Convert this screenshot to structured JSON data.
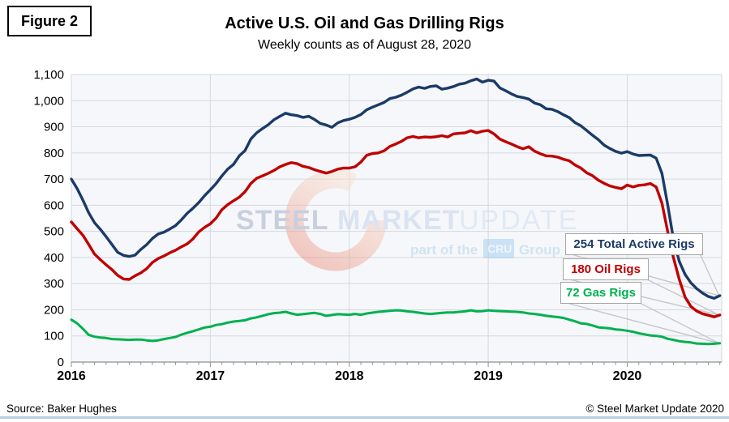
{
  "figure_label": "Figure 2",
  "header": {
    "title": "Active U.S. Oil and Gas Drilling Rigs",
    "subtitle": "Weekly counts as of August 28, 2020"
  },
  "watermark": {
    "word1": "STEEL",
    "word2": "MARKET",
    "word3": "UPDATE",
    "tagline_prefix": "part of the",
    "tagline_badge": "CRU",
    "tagline_suffix": "Group",
    "crescent_color_bottom": "#e8826e",
    "crescent_color_top": "#f8ddc9"
  },
  "footer": {
    "source": "Source: Baker Hughes",
    "copyright": "© Steel Market Update 2020"
  },
  "chart_data": {
    "type": "line",
    "title": "Active U.S. Oil and Gas Drilling Rigs",
    "subtitle": "Weekly counts as of August 28, 2020",
    "xlabel": "",
    "ylabel": "",
    "xlim": [
      2016.0,
      2020.68
    ],
    "ylim": [
      0,
      1100
    ],
    "y_tick_step": 100,
    "y_tick_labels": [
      "0",
      "100",
      "200",
      "300",
      "400",
      "500",
      "600",
      "700",
      "800",
      "900",
      "1,000",
      "1,100"
    ],
    "x_tick_labels": [
      "2016",
      "2017",
      "2018",
      "2019",
      "2020"
    ],
    "grid": true,
    "x_start": 2016.0,
    "x_step": 0.0416667,
    "series": [
      {
        "name": "Total Active Rigs",
        "color": "#1b3a68",
        "end_value": 254,
        "end_label": "254 Total Active Rigs",
        "values": [
          700,
          664,
          619,
          571,
          533,
          508,
          480,
          450,
          420,
          408,
          404,
          409,
          431,
          449,
          473,
          490,
          497,
          509,
          522,
          544,
          569,
          588,
          610,
          636,
          659,
          683,
          712,
          738,
          756,
          789,
          809,
          853,
          877,
          893,
          908,
          927,
          940,
          952,
          946,
          943,
          936,
          940,
          928,
          913,
          907,
          898,
          915,
          924,
          929,
          936,
          947,
          965,
          975,
          984,
          993,
          1008,
          1013,
          1021,
          1032,
          1045,
          1052,
          1047,
          1054,
          1057,
          1044,
          1048,
          1054,
          1063,
          1067,
          1076,
          1083,
          1071,
          1078,
          1075,
          1049,
          1038,
          1026,
          1016,
          1012,
          1006,
          991,
          984,
          969,
          967,
          958,
          946,
          935,
          916,
          904,
          886,
          868,
          851,
          830,
          817,
          806,
          799,
          805,
          796,
          790,
          791,
          792,
          780,
          722,
          600,
          468,
          385,
          335,
          303,
          281,
          264,
          251,
          244,
          254
        ]
      },
      {
        "name": "Oil Rigs",
        "color": "#c00000",
        "end_value": 180,
        "end_label": "180 Oil Rigs",
        "values": [
          536,
          510,
          485,
          450,
          413,
          392,
          372,
          354,
          332,
          318,
          316,
          330,
          341,
          357,
          381,
          396,
          406,
          418,
          428,
          441,
          452,
          471,
          498,
          515,
          529,
          551,
          583,
          602,
          617,
          631,
          652,
          683,
          703,
          712,
          722,
          733,
          747,
          756,
          763,
          759,
          749,
          744,
          736,
          729,
          723,
          729,
          738,
          742,
          742,
          747,
          765,
          791,
          798,
          800,
          808,
          825,
          834,
          844,
          858,
          863,
          858,
          861,
          860,
          862,
          866,
          861,
          873,
          875,
          877,
          885,
          877,
          883,
          886,
          873,
          853,
          843,
          834,
          824,
          816,
          824,
          807,
          797,
          789,
          788,
          784,
          776,
          770,
          754,
          742,
          724,
          713,
          696,
          684,
          674,
          668,
          663,
          677,
          670,
          676,
          678,
          683,
          670,
          608,
          498,
          398,
          316,
          248,
          213,
          195,
          185,
          179,
          173,
          180
        ]
      },
      {
        "name": "Gas Rigs",
        "color": "#00b050",
        "end_value": 72,
        "end_label": "72 Gas Rigs",
        "values": [
          162,
          148,
          127,
          104,
          97,
          94,
          92,
          88,
          87,
          86,
          85,
          86,
          86,
          83,
          81,
          83,
          88,
          92,
          96,
          105,
          112,
          118,
          125,
          132,
          135,
          142,
          145,
          151,
          155,
          157,
          160,
          167,
          171,
          177,
          183,
          187,
          189,
          192,
          186,
          181,
          183,
          186,
          188,
          184,
          177,
          180,
          183,
          182,
          181,
          184,
          181,
          186,
          189,
          192,
          194,
          196,
          198,
          197,
          194,
          192,
          189,
          186,
          184,
          186,
          188,
          190,
          190,
          192,
          194,
          198,
          194,
          195,
          198,
          196,
          195,
          194,
          193,
          192,
          190,
          186,
          184,
          181,
          177,
          174,
          172,
          169,
          162,
          156,
          148,
          146,
          140,
          133,
          131,
          129,
          125,
          123,
          120,
          116,
          110,
          106,
          102,
          100,
          97,
          89,
          85,
          80,
          77,
          75,
          71,
          70,
          69,
          70,
          72
        ]
      }
    ],
    "legend_position": "callouts-right"
  }
}
